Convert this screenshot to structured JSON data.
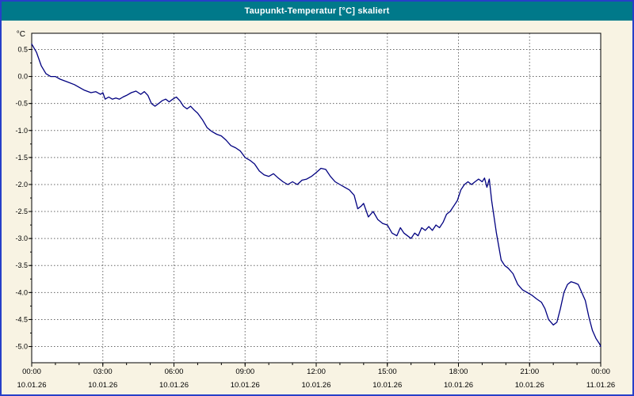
{
  "window": {
    "title": "Taupunkt-Temperatur [°C] skaliert"
  },
  "colors": {
    "titlebar": "#00798a",
    "window_border": "#2740c8",
    "background": "#f8f3e3",
    "plot_background": "#ffffff",
    "line": "#000080",
    "grid": "#666666",
    "axis": "#000000",
    "title_text": "#ffffff"
  },
  "chart_data": {
    "type": "line",
    "title": "Taupunkt-Temperatur [°C] skaliert",
    "xlabel": "",
    "ylabel": "°C",
    "ylim": [
      -5.3,
      0.8
    ],
    "xlim_hours": [
      0,
      24
    ],
    "grid": "dashed",
    "legend": "none",
    "yticks": [
      0.5,
      0.0,
      -0.5,
      -1.0,
      -1.5,
      -2.0,
      -2.5,
      -3.0,
      -3.5,
      -4.0,
      -4.5,
      -5.0
    ],
    "ytick_labels": [
      "0.5",
      "0.0",
      "-0.5",
      "-1.0",
      "-1.5",
      "-2.0",
      "-2.5",
      "-3.0",
      "-3.5",
      "-4.0",
      "-4.5",
      "-5.0"
    ],
    "y_minor_step": 0.25,
    "x_minor_step": 1,
    "xticks": [
      {
        "hour": 0,
        "time": "00:00",
        "date": "10.01.26"
      },
      {
        "hour": 3,
        "time": "03:00",
        "date": "10.01.26"
      },
      {
        "hour": 6,
        "time": "06:00",
        "date": "10.01.26"
      },
      {
        "hour": 9,
        "time": "09:00",
        "date": "10.01.26"
      },
      {
        "hour": 12,
        "time": "12:00",
        "date": "10.01.26"
      },
      {
        "hour": 15,
        "time": "15:00",
        "date": "10.01.26"
      },
      {
        "hour": 18,
        "time": "18:00",
        "date": "10.01.26"
      },
      {
        "hour": 21,
        "time": "21:00",
        "date": "10.01.26"
      },
      {
        "hour": 24,
        "time": "00:00",
        "date": "11.01.26"
      }
    ],
    "series": [
      {
        "name": "Taupunkt-Temperatur",
        "color": "#000080",
        "points": [
          [
            0,
            0.6
          ],
          [
            0.2,
            0.45
          ],
          [
            0.4,
            0.2
          ],
          [
            0.6,
            0.05
          ],
          [
            0.8,
            0.0
          ],
          [
            1.0,
            0.0
          ],
          [
            1.2,
            -0.05
          ],
          [
            1.5,
            -0.1
          ],
          [
            1.8,
            -0.15
          ],
          [
            2.0,
            -0.2
          ],
          [
            2.2,
            -0.25
          ],
          [
            2.5,
            -0.3
          ],
          [
            2.7,
            -0.28
          ],
          [
            2.9,
            -0.33
          ],
          [
            3.0,
            -0.3
          ],
          [
            3.1,
            -0.42
          ],
          [
            3.25,
            -0.38
          ],
          [
            3.4,
            -0.42
          ],
          [
            3.55,
            -0.4
          ],
          [
            3.7,
            -0.42
          ],
          [
            3.85,
            -0.38
          ],
          [
            4.0,
            -0.35
          ],
          [
            4.2,
            -0.3
          ],
          [
            4.4,
            -0.27
          ],
          [
            4.6,
            -0.33
          ],
          [
            4.75,
            -0.28
          ],
          [
            4.9,
            -0.35
          ],
          [
            5.05,
            -0.5
          ],
          [
            5.2,
            -0.55
          ],
          [
            5.35,
            -0.5
          ],
          [
            5.5,
            -0.45
          ],
          [
            5.65,
            -0.42
          ],
          [
            5.8,
            -0.47
          ],
          [
            5.95,
            -0.42
          ],
          [
            6.1,
            -0.38
          ],
          [
            6.25,
            -0.45
          ],
          [
            6.4,
            -0.55
          ],
          [
            6.55,
            -0.6
          ],
          [
            6.7,
            -0.55
          ],
          [
            6.85,
            -0.62
          ],
          [
            7.0,
            -0.68
          ],
          [
            7.2,
            -0.8
          ],
          [
            7.4,
            -0.95
          ],
          [
            7.6,
            -1.02
          ],
          [
            7.8,
            -1.07
          ],
          [
            8.0,
            -1.1
          ],
          [
            8.2,
            -1.18
          ],
          [
            8.4,
            -1.28
          ],
          [
            8.6,
            -1.32
          ],
          [
            8.8,
            -1.38
          ],
          [
            9.0,
            -1.5
          ],
          [
            9.2,
            -1.55
          ],
          [
            9.4,
            -1.62
          ],
          [
            9.6,
            -1.75
          ],
          [
            9.8,
            -1.82
          ],
          [
            10.0,
            -1.85
          ],
          [
            10.2,
            -1.8
          ],
          [
            10.4,
            -1.88
          ],
          [
            10.6,
            -1.95
          ],
          [
            10.8,
            -2.0
          ],
          [
            11.0,
            -1.95
          ],
          [
            11.2,
            -2.0
          ],
          [
            11.4,
            -1.92
          ],
          [
            11.6,
            -1.9
          ],
          [
            11.8,
            -1.85
          ],
          [
            12.0,
            -1.78
          ],
          [
            12.2,
            -1.7
          ],
          [
            12.4,
            -1.72
          ],
          [
            12.6,
            -1.85
          ],
          [
            12.8,
            -1.95
          ],
          [
            13.0,
            -2.0
          ],
          [
            13.2,
            -2.05
          ],
          [
            13.4,
            -2.1
          ],
          [
            13.6,
            -2.2
          ],
          [
            13.75,
            -2.45
          ],
          [
            13.9,
            -2.4
          ],
          [
            14.0,
            -2.35
          ],
          [
            14.2,
            -2.6
          ],
          [
            14.4,
            -2.5
          ],
          [
            14.6,
            -2.65
          ],
          [
            14.8,
            -2.72
          ],
          [
            15.0,
            -2.75
          ],
          [
            15.2,
            -2.9
          ],
          [
            15.4,
            -2.95
          ],
          [
            15.55,
            -2.8
          ],
          [
            15.7,
            -2.9
          ],
          [
            15.85,
            -2.95
          ],
          [
            16.0,
            -3.0
          ],
          [
            16.15,
            -2.9
          ],
          [
            16.3,
            -2.95
          ],
          [
            16.45,
            -2.8
          ],
          [
            16.6,
            -2.85
          ],
          [
            16.75,
            -2.78
          ],
          [
            16.9,
            -2.85
          ],
          [
            17.05,
            -2.75
          ],
          [
            17.2,
            -2.8
          ],
          [
            17.35,
            -2.7
          ],
          [
            17.5,
            -2.55
          ],
          [
            17.65,
            -2.5
          ],
          [
            17.8,
            -2.4
          ],
          [
            17.95,
            -2.3
          ],
          [
            18.1,
            -2.1
          ],
          [
            18.25,
            -2.0
          ],
          [
            18.4,
            -1.95
          ],
          [
            18.55,
            -2.0
          ],
          [
            18.7,
            -1.95
          ],
          [
            18.85,
            -1.9
          ],
          [
            19.0,
            -1.95
          ],
          [
            19.1,
            -1.88
          ],
          [
            19.2,
            -2.05
          ],
          [
            19.3,
            -1.9
          ],
          [
            19.4,
            -2.3
          ],
          [
            19.6,
            -2.9
          ],
          [
            19.8,
            -3.4
          ],
          [
            19.95,
            -3.5
          ],
          [
            20.1,
            -3.55
          ],
          [
            20.3,
            -3.65
          ],
          [
            20.5,
            -3.85
          ],
          [
            20.7,
            -3.95
          ],
          [
            20.9,
            -4.0
          ],
          [
            21.1,
            -4.05
          ],
          [
            21.3,
            -4.12
          ],
          [
            21.5,
            -4.18
          ],
          [
            21.65,
            -4.3
          ],
          [
            21.8,
            -4.5
          ],
          [
            22.0,
            -4.6
          ],
          [
            22.15,
            -4.55
          ],
          [
            22.3,
            -4.3
          ],
          [
            22.45,
            -4.0
          ],
          [
            22.6,
            -3.85
          ],
          [
            22.75,
            -3.8
          ],
          [
            22.9,
            -3.82
          ],
          [
            23.05,
            -3.85
          ],
          [
            23.2,
            -4.0
          ],
          [
            23.35,
            -4.15
          ],
          [
            23.5,
            -4.45
          ],
          [
            23.65,
            -4.7
          ],
          [
            23.8,
            -4.85
          ],
          [
            23.95,
            -4.95
          ],
          [
            24.0,
            -5.0
          ]
        ]
      }
    ]
  }
}
